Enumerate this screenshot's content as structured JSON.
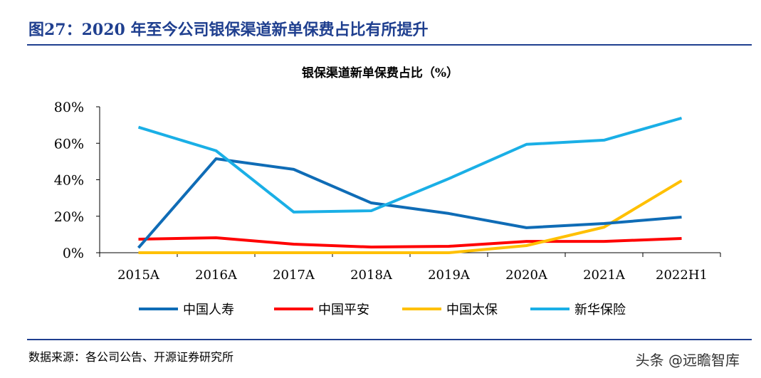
{
  "header": {
    "title": "图27：2020 年至今公司银保渠道新单保费占比有所提升"
  },
  "footer": {
    "source": "数据来源：各公司公告、开源证券研究所",
    "watermark": "头条 @远瞻智库"
  },
  "chart_data": {
    "type": "line",
    "title": "银保渠道新单保费占比（%）",
    "categories": [
      "2015A",
      "2016A",
      "2017A",
      "2018A",
      "2019A",
      "2020A",
      "2021A",
      "2022H1"
    ],
    "ylim": [
      0,
      80
    ],
    "yticks": [
      "0%",
      "20%",
      "40%",
      "60%",
      "80%"
    ],
    "grid": false,
    "legend": "bottom",
    "series": [
      {
        "name": "中国人寿",
        "color": "#0f6cb6",
        "values": [
          2.7,
          51.5,
          45.7,
          27.3,
          21.5,
          13.7,
          16,
          19.5
        ]
      },
      {
        "name": "中国平安",
        "color": "#ff0000",
        "values": [
          7.4,
          8.2,
          4.7,
          3.1,
          3.5,
          6.2,
          6.2,
          7.8
        ]
      },
      {
        "name": "中国太保",
        "color": "#ffc000",
        "values": [
          0,
          0,
          0,
          0,
          0,
          3.9,
          14,
          39.5
        ]
      },
      {
        "name": "新华保险",
        "color": "#1aafe6",
        "values": [
          68.8,
          55.9,
          22.3,
          23,
          40.6,
          59.4,
          61.7,
          73.8
        ]
      }
    ]
  }
}
